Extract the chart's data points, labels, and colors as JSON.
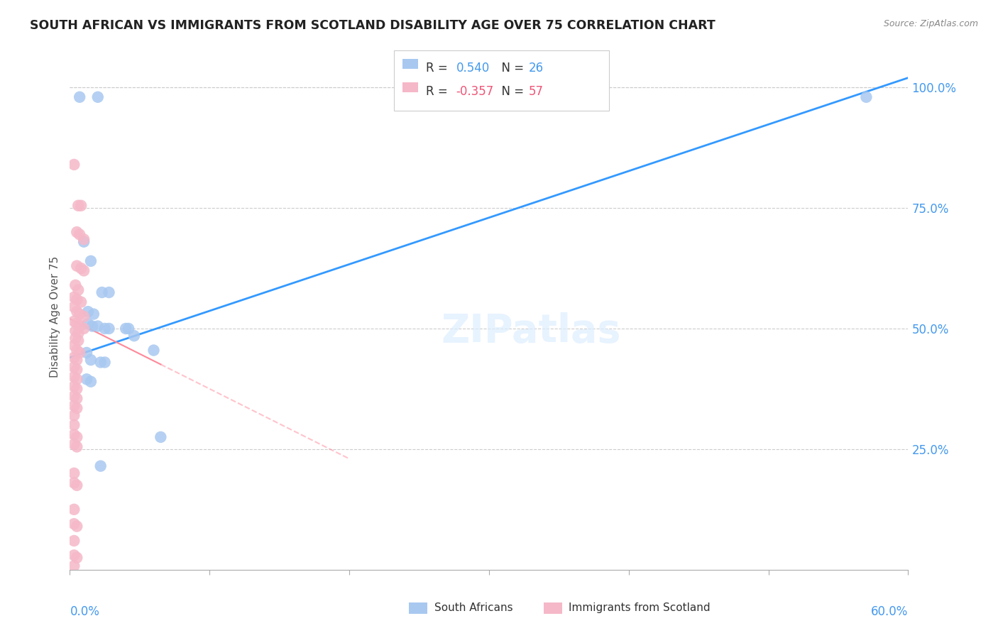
{
  "title": "SOUTH AFRICAN VS IMMIGRANTS FROM SCOTLAND DISABILITY AGE OVER 75 CORRELATION CHART",
  "source": "Source: ZipAtlas.com",
  "ylabel": "Disability Age Over 75",
  "legend_label1": "South Africans",
  "legend_label2": "Immigrants from Scotland",
  "R1": 0.54,
  "N1": 26,
  "R2": -0.357,
  "N2": 57,
  "blue_color": "#a8c8f0",
  "pink_color": "#f5b8c8",
  "trendline_blue": "#3399ff",
  "trendline_pink": "#ff8899",
  "blue_scatter": [
    [
      0.007,
      0.98
    ],
    [
      0.02,
      0.98
    ],
    [
      0.57,
      0.98
    ],
    [
      0.01,
      0.68
    ],
    [
      0.015,
      0.64
    ],
    [
      0.023,
      0.575
    ],
    [
      0.028,
      0.575
    ],
    [
      0.013,
      0.535
    ],
    [
      0.017,
      0.53
    ],
    [
      0.013,
      0.51
    ],
    [
      0.016,
      0.505
    ],
    [
      0.02,
      0.505
    ],
    [
      0.025,
      0.5
    ],
    [
      0.028,
      0.5
    ],
    [
      0.04,
      0.5
    ],
    [
      0.042,
      0.5
    ],
    [
      0.046,
      0.485
    ],
    [
      0.06,
      0.455
    ],
    [
      0.012,
      0.45
    ],
    [
      0.015,
      0.435
    ],
    [
      0.022,
      0.43
    ],
    [
      0.025,
      0.43
    ],
    [
      0.012,
      0.395
    ],
    [
      0.015,
      0.39
    ],
    [
      0.065,
      0.275
    ],
    [
      0.022,
      0.215
    ]
  ],
  "pink_scatter": [
    [
      0.003,
      0.84
    ],
    [
      0.006,
      0.755
    ],
    [
      0.008,
      0.755
    ],
    [
      0.005,
      0.7
    ],
    [
      0.007,
      0.695
    ],
    [
      0.01,
      0.685
    ],
    [
      0.005,
      0.63
    ],
    [
      0.008,
      0.625
    ],
    [
      0.01,
      0.62
    ],
    [
      0.004,
      0.59
    ],
    [
      0.006,
      0.58
    ],
    [
      0.003,
      0.565
    ],
    [
      0.005,
      0.56
    ],
    [
      0.008,
      0.555
    ],
    [
      0.003,
      0.545
    ],
    [
      0.005,
      0.535
    ],
    [
      0.007,
      0.53
    ],
    [
      0.01,
      0.525
    ],
    [
      0.003,
      0.515
    ],
    [
      0.005,
      0.51
    ],
    [
      0.007,
      0.505
    ],
    [
      0.01,
      0.5
    ],
    [
      0.004,
      0.495
    ],
    [
      0.006,
      0.49
    ],
    [
      0.004,
      0.48
    ],
    [
      0.006,
      0.475
    ],
    [
      0.003,
      0.465
    ],
    [
      0.005,
      0.455
    ],
    [
      0.007,
      0.45
    ],
    [
      0.003,
      0.44
    ],
    [
      0.005,
      0.435
    ],
    [
      0.003,
      0.42
    ],
    [
      0.005,
      0.415
    ],
    [
      0.003,
      0.4
    ],
    [
      0.005,
      0.395
    ],
    [
      0.003,
      0.38
    ],
    [
      0.005,
      0.375
    ],
    [
      0.003,
      0.36
    ],
    [
      0.005,
      0.355
    ],
    [
      0.003,
      0.34
    ],
    [
      0.005,
      0.335
    ],
    [
      0.003,
      0.32
    ],
    [
      0.003,
      0.3
    ],
    [
      0.003,
      0.28
    ],
    [
      0.005,
      0.275
    ],
    [
      0.003,
      0.26
    ],
    [
      0.005,
      0.255
    ],
    [
      0.003,
      0.2
    ],
    [
      0.003,
      0.18
    ],
    [
      0.005,
      0.175
    ],
    [
      0.003,
      0.125
    ],
    [
      0.003,
      0.095
    ],
    [
      0.005,
      0.09
    ],
    [
      0.003,
      0.06
    ],
    [
      0.003,
      0.03
    ],
    [
      0.005,
      0.025
    ],
    [
      0.003,
      0.008
    ]
  ],
  "xmin": 0.0,
  "xmax": 0.6,
  "ymin": 0.0,
  "ymax": 1.05,
  "blue_trendline_x": [
    0.0,
    0.6
  ],
  "blue_trendline_y": [
    0.44,
    1.02
  ],
  "pink_trendline_x": [
    0.0,
    0.2
  ],
  "pink_trendline_y": [
    0.52,
    0.23
  ]
}
